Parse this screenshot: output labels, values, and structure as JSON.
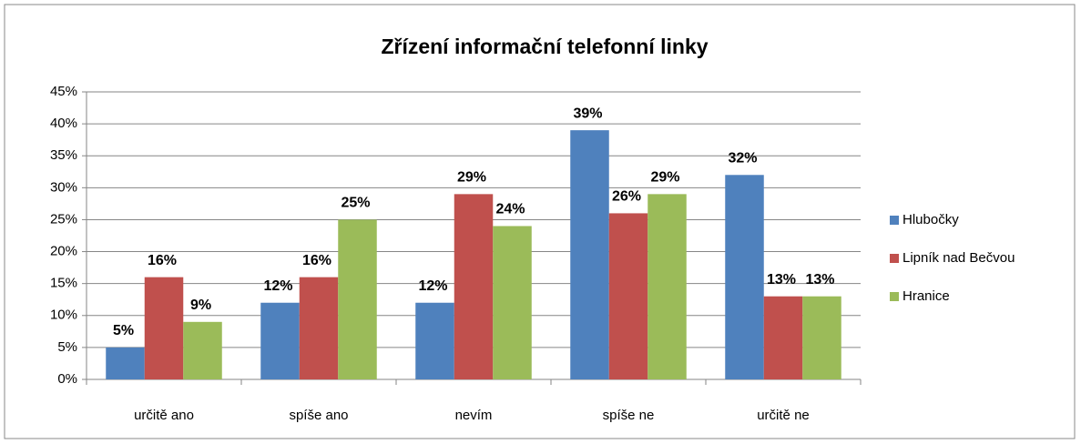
{
  "chart_data": {
    "type": "bar",
    "title": "Zřízení informační telefonní linky",
    "categories": [
      "určitě ano",
      "spíše ano",
      "nevím",
      "spíše ne",
      "určitě ne"
    ],
    "series": [
      {
        "name": "Hlubočky",
        "color": "#4f81bd",
        "values": [
          5,
          12,
          12,
          39,
          32
        ],
        "value_labels": [
          "5%",
          "12%",
          "12%",
          "39%",
          "32%"
        ]
      },
      {
        "name": "Lipník nad Bečvou",
        "color": "#c0504d",
        "values": [
          16,
          16,
          29,
          26,
          13
        ],
        "value_labels": [
          "16%",
          "16%",
          "29%",
          "26%",
          "13%"
        ]
      },
      {
        "name": "Hranice",
        "color": "#9bbb59",
        "values": [
          9,
          25,
          24,
          29,
          13
        ],
        "value_labels": [
          "9%",
          "25%",
          "24%",
          "29%",
          "13%"
        ]
      }
    ],
    "ylim": [
      0,
      45
    ],
    "yticks": [
      {
        "value": 0,
        "label": "0%"
      },
      {
        "value": 5,
        "label": "5%"
      },
      {
        "value": 10,
        "label": "10%"
      },
      {
        "value": 15,
        "label": "15%"
      },
      {
        "value": 20,
        "label": "20%"
      },
      {
        "value": 25,
        "label": "25%"
      },
      {
        "value": 30,
        "label": "30%"
      },
      {
        "value": 35,
        "label": "35%"
      },
      {
        "value": 40,
        "label": "40%"
      },
      {
        "value": 45,
        "label": "45%"
      }
    ],
    "grid": true,
    "legend": "right"
  }
}
